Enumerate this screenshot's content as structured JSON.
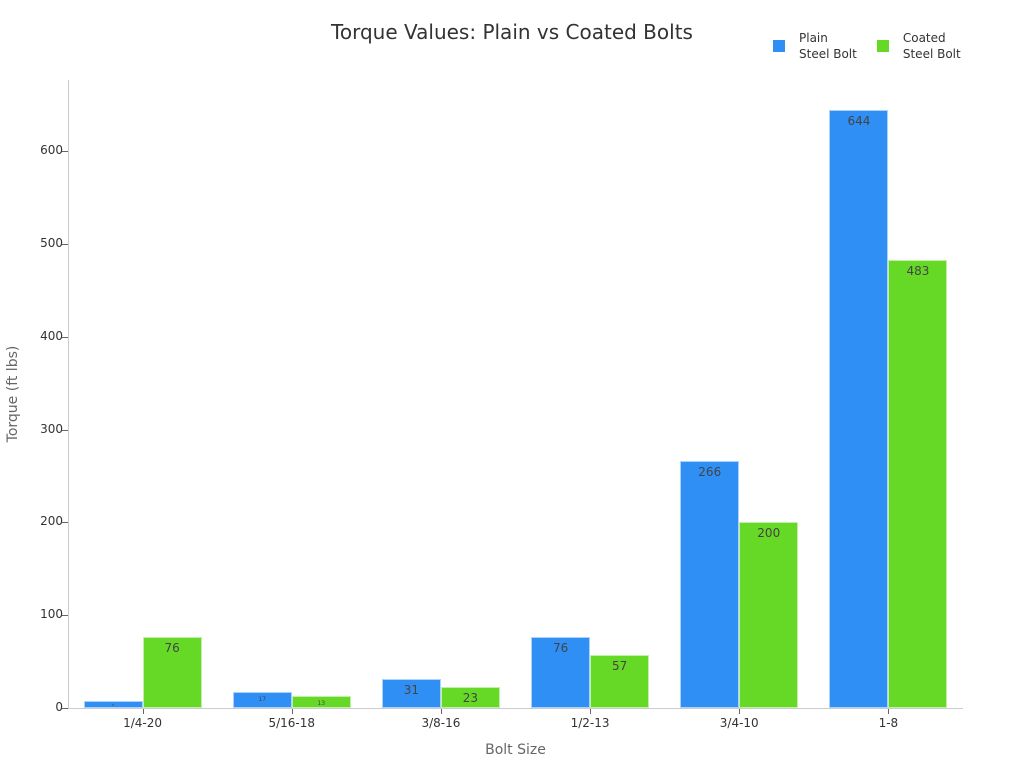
{
  "chart_data": {
    "type": "bar",
    "title": "Torque Values: Plain vs Coated Bolts",
    "xlabel": "Bolt Size",
    "ylabel": "Torque (ft lbs)",
    "categories": [
      "1/4-20",
      "5/16-18",
      "3/8-16",
      "1/2-13",
      "3/4-10",
      "1-8"
    ],
    "series": [
      {
        "name": "Plain Steel Bolt",
        "legend_lines": [
          "Plain",
          "Steel Bolt"
        ],
        "color": "#2F8FF5",
        "values": [
          8,
          17,
          31,
          76,
          266,
          644
        ]
      },
      {
        "name": "Coated Steel Bolt",
        "legend_lines": [
          "Coated",
          "Steel Bolt"
        ],
        "color": "#66D926",
        "values": [
          76,
          13,
          23,
          57,
          200,
          483
        ]
      }
    ],
    "ylim": [
      0,
      676
    ],
    "yticks": [
      0,
      100,
      200,
      300,
      400,
      500,
      600
    ],
    "grid": false,
    "legend_position": "top-right"
  }
}
